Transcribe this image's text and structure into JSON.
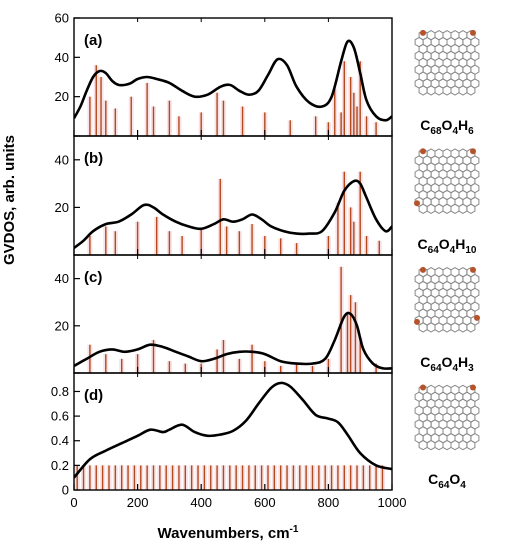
{
  "chart_data": {
    "type": "line",
    "ylabel": "GVDOS, arb. units",
    "xlabel": "Wavenumbers, cm",
    "xlabel_sup": "-1",
    "xlim": [
      0,
      1000
    ],
    "xticks": [
      0,
      200,
      400,
      600,
      800,
      1000
    ],
    "colors": {
      "curve": "#000000",
      "bars": "#b24a1e",
      "halo": "#f2c6cc",
      "molecule": "#888888",
      "oxygen": "#b5542a"
    },
    "panels": [
      {
        "label": "(a)",
        "formula": [
          [
            "C",
            ""
          ],
          [
            "68",
            "sub"
          ],
          [
            "O",
            ""
          ],
          [
            "4",
            "sub"
          ],
          [
            "H",
            ""
          ],
          [
            "6",
            "sub"
          ]
        ],
        "ylim": [
          0,
          60
        ],
        "yticks": [
          0,
          20,
          40,
          60
        ],
        "curve": {
          "x": [
            0,
            20,
            40,
            60,
            80,
            100,
            120,
            140,
            160,
            180,
            200,
            230,
            260,
            300,
            340,
            380,
            420,
            460,
            490,
            520,
            550,
            580,
            610,
            640,
            670,
            700,
            740,
            780,
            810,
            840,
            860,
            880,
            900,
            920,
            950,
            980,
            1000
          ],
          "y": [
            9,
            15,
            23,
            30,
            33,
            32,
            28,
            26,
            26,
            27,
            29,
            30,
            29,
            27,
            23,
            20,
            21,
            25,
            26,
            23,
            21,
            23,
            31,
            39,
            36,
            25,
            17,
            15,
            20,
            38,
            48,
            45,
            32,
            18,
            10,
            8,
            10
          ]
        },
        "bars": [
          [
            50,
            20
          ],
          [
            70,
            36
          ],
          [
            85,
            30
          ],
          [
            100,
            18
          ],
          [
            130,
            14
          ],
          [
            180,
            20
          ],
          [
            230,
            27
          ],
          [
            250,
            15
          ],
          [
            300,
            18
          ],
          [
            330,
            10
          ],
          [
            400,
            12
          ],
          [
            450,
            22
          ],
          [
            470,
            18
          ],
          [
            530,
            15
          ],
          [
            600,
            12
          ],
          [
            680,
            8
          ],
          [
            760,
            10
          ],
          [
            800,
            7
          ],
          [
            820,
            24
          ],
          [
            840,
            12
          ],
          [
            850,
            38
          ],
          [
            870,
            30
          ],
          [
            880,
            22
          ],
          [
            890,
            15
          ],
          [
            900,
            38
          ],
          [
            920,
            10
          ],
          [
            950,
            7
          ]
        ]
      },
      {
        "label": "(b)",
        "formula": [
          [
            "C",
            ""
          ],
          [
            "64",
            "sub"
          ],
          [
            "O",
            ""
          ],
          [
            "4",
            "sub"
          ],
          [
            "H",
            ""
          ],
          [
            "10",
            "sub"
          ]
        ],
        "ylim": [
          0,
          50
        ],
        "yticks": [
          0,
          20,
          40
        ],
        "curve": {
          "x": [
            0,
            30,
            60,
            100,
            140,
            180,
            220,
            250,
            280,
            320,
            360,
            400,
            440,
            470,
            500,
            530,
            560,
            590,
            620,
            660,
            700,
            740,
            780,
            820,
            850,
            880,
            900,
            920,
            950,
            980,
            1000
          ],
          "y": [
            3,
            6,
            10,
            13,
            14,
            17,
            21,
            20,
            17,
            14,
            12,
            11,
            13,
            15,
            14,
            15,
            17,
            15,
            12,
            10,
            9,
            9,
            10,
            18,
            27,
            31,
            30,
            24,
            15,
            10,
            12
          ]
        },
        "bars": [
          [
            50,
            8
          ],
          [
            100,
            12
          ],
          [
            130,
            10
          ],
          [
            200,
            14
          ],
          [
            260,
            16
          ],
          [
            300,
            10
          ],
          [
            340,
            8
          ],
          [
            400,
            11
          ],
          [
            460,
            32
          ],
          [
            480,
            12
          ],
          [
            520,
            10
          ],
          [
            560,
            13
          ],
          [
            600,
            8
          ],
          [
            650,
            7
          ],
          [
            700,
            5
          ],
          [
            800,
            8
          ],
          [
            830,
            22
          ],
          [
            850,
            35
          ],
          [
            870,
            20
          ],
          [
            880,
            14
          ],
          [
            900,
            35
          ],
          [
            920,
            8
          ],
          [
            960,
            6
          ]
        ]
      },
      {
        "label": "(c)",
        "formula": [
          [
            "C",
            ""
          ],
          [
            "64",
            "sub"
          ],
          [
            "O",
            ""
          ],
          [
            "4",
            "sub"
          ],
          [
            "H",
            ""
          ],
          [
            "3",
            "sub"
          ]
        ],
        "ylim": [
          0,
          50
        ],
        "yticks": [
          0,
          20,
          40
        ],
        "curve": {
          "x": [
            0,
            40,
            80,
            120,
            160,
            200,
            240,
            280,
            320,
            360,
            400,
            440,
            480,
            520,
            560,
            600,
            650,
            700,
            750,
            790,
            820,
            850,
            870,
            890,
            910,
            940,
            970,
            1000
          ],
          "y": [
            3,
            6,
            9,
            10,
            9,
            10,
            12,
            11,
            9,
            7,
            5,
            6,
            8,
            9,
            9,
            8,
            5,
            4,
            4,
            6,
            14,
            24,
            25,
            20,
            10,
            4,
            2,
            2
          ]
        },
        "bars": [
          [
            50,
            12
          ],
          [
            100,
            8
          ],
          [
            150,
            6
          ],
          [
            200,
            8
          ],
          [
            250,
            14
          ],
          [
            300,
            5
          ],
          [
            350,
            4
          ],
          [
            400,
            4
          ],
          [
            450,
            10
          ],
          [
            470,
            14
          ],
          [
            520,
            6
          ],
          [
            560,
            12
          ],
          [
            600,
            5
          ],
          [
            650,
            3
          ],
          [
            700,
            4
          ],
          [
            750,
            3
          ],
          [
            800,
            6
          ],
          [
            840,
            45
          ],
          [
            860,
            25
          ],
          [
            870,
            33
          ],
          [
            885,
            30
          ],
          [
            900,
            15
          ],
          [
            950,
            4
          ]
        ]
      },
      {
        "label": "(d)",
        "formula": [
          [
            "C",
            ""
          ],
          [
            "64",
            "sub"
          ],
          [
            "O",
            ""
          ],
          [
            "4",
            "sub"
          ]
        ],
        "ylim": [
          0,
          0.95
        ],
        "yticks": [
          0,
          0.2,
          0.4,
          0.6,
          0.8
        ],
        "curve": {
          "x": [
            0,
            50,
            100,
            150,
            200,
            240,
            280,
            300,
            340,
            380,
            420,
            460,
            500,
            540,
            580,
            620,
            650,
            680,
            720,
            760,
            800,
            830,
            860,
            900,
            950,
            1000
          ],
          "y": [
            0.1,
            0.25,
            0.32,
            0.38,
            0.44,
            0.49,
            0.47,
            0.49,
            0.53,
            0.47,
            0.44,
            0.45,
            0.48,
            0.56,
            0.7,
            0.83,
            0.87,
            0.84,
            0.73,
            0.61,
            0.58,
            0.55,
            0.45,
            0.3,
            0.2,
            0.17
          ]
        },
        "bars_uniform_height": 0.2,
        "bar_x": [
          10,
          30,
          50,
          70,
          90,
          110,
          130,
          150,
          170,
          190,
          210,
          230,
          250,
          270,
          290,
          310,
          330,
          350,
          370,
          390,
          410,
          430,
          450,
          470,
          490,
          510,
          530,
          550,
          570,
          590,
          610,
          630,
          650,
          670,
          690,
          710,
          730,
          750,
          770,
          790,
          810,
          830,
          850,
          870,
          890,
          910,
          930,
          950,
          970
        ]
      }
    ]
  }
}
